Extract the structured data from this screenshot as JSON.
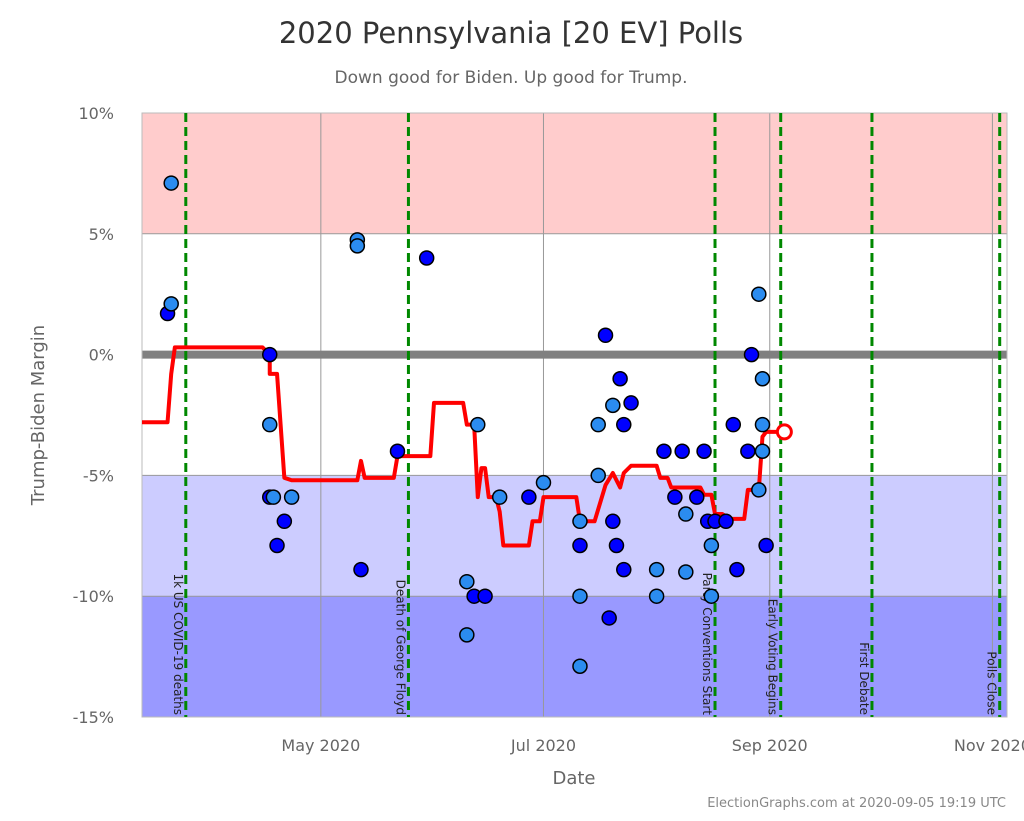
{
  "chart_data": {
    "type": "scatter",
    "title": "2020 Pennsylvania [20 EV] Polls",
    "subtitle": "Down good for Biden. Up good for Trump.",
    "xlabel": "Date",
    "ylabel": "Trump-Biden Margin",
    "xlim": [
      "2020-03-13",
      "2020-11-05"
    ],
    "ylim": [
      -15,
      10
    ],
    "x_ticks": [
      {
        "date": "2020-05-01",
        "label": "May 2020"
      },
      {
        "date": "2020-07-01",
        "label": "Jul 2020"
      },
      {
        "date": "2020-09-01",
        "label": "Sep 2020"
      },
      {
        "date": "2020-11-01",
        "label": "Nov 2020"
      }
    ],
    "y_ticks": [
      {
        "value": 10,
        "label": "10%"
      },
      {
        "value": 5,
        "label": "5%"
      },
      {
        "value": 0,
        "label": "0%"
      },
      {
        "value": -5,
        "label": "-5%"
      },
      {
        "value": -10,
        "label": "-10%"
      },
      {
        "value": -15,
        "label": "-15%"
      }
    ],
    "grid": true,
    "bands": [
      {
        "from": 5,
        "to": 10,
        "color": "#ffcccc"
      },
      {
        "from": -5,
        "to": 5,
        "color": "#ffffff"
      },
      {
        "from": -10,
        "to": -5,
        "color": "#ccccff"
      },
      {
        "from": -15,
        "to": -10,
        "color": "#9999ff"
      }
    ],
    "colors": {
      "poll_dark": "#0000ff",
      "poll_light": "#2b8cf0",
      "trend": "#ff0000",
      "event": "#008800",
      "zero": "#808080"
    },
    "events": [
      {
        "date": "2020-03-25",
        "label": "1k US COVID-19 deaths"
      },
      {
        "date": "2020-05-25",
        "label": "Death of George Floyd"
      },
      {
        "date": "2020-08-17",
        "label": "Party Conventions Start"
      },
      {
        "date": "2020-09-04",
        "label": "Early Voting Begins"
      },
      {
        "date": "2020-09-29",
        "label": "First Debate"
      },
      {
        "date": "2020-11-03",
        "label": "Polls Close"
      }
    ],
    "polls": [
      [
        "2020-03-20",
        1.7,
        "dark"
      ],
      [
        "2020-03-21",
        7.1,
        "light"
      ],
      [
        "2020-03-21",
        2.1,
        "light"
      ],
      [
        "2020-04-17",
        0.0,
        "dark"
      ],
      [
        "2020-04-17",
        -2.9,
        "light"
      ],
      [
        "2020-04-17",
        -5.9,
        "dark"
      ],
      [
        "2020-04-18",
        -5.9,
        "light"
      ],
      [
        "2020-04-19",
        -7.9,
        "dark"
      ],
      [
        "2020-04-21",
        -6.9,
        "dark"
      ],
      [
        "2020-04-23",
        -5.9,
        "light"
      ],
      [
        "2020-05-11",
        4.75,
        "light"
      ],
      [
        "2020-05-11",
        4.5,
        "light"
      ],
      [
        "2020-05-12",
        -8.9,
        "dark"
      ],
      [
        "2020-05-22",
        -4.0,
        "dark"
      ],
      [
        "2020-05-30",
        4.0,
        "dark"
      ],
      [
        "2020-06-10",
        -9.4,
        "light"
      ],
      [
        "2020-06-10",
        -11.6,
        "light"
      ],
      [
        "2020-06-12",
        -10.0,
        "dark"
      ],
      [
        "2020-06-13",
        -2.9,
        "light"
      ],
      [
        "2020-06-15",
        -10.0,
        "dark"
      ],
      [
        "2020-06-19",
        -5.9,
        "light"
      ],
      [
        "2020-06-27",
        -5.9,
        "dark"
      ],
      [
        "2020-07-01",
        -5.3,
        "light"
      ],
      [
        "2020-07-11",
        -6.9,
        "light"
      ],
      [
        "2020-07-11",
        -7.9,
        "dark"
      ],
      [
        "2020-07-11",
        -10.0,
        "light"
      ],
      [
        "2020-07-11",
        -12.9,
        "light"
      ],
      [
        "2020-07-16",
        -2.9,
        "light"
      ],
      [
        "2020-07-16",
        -5.0,
        "light"
      ],
      [
        "2020-07-18",
        0.8,
        "dark"
      ],
      [
        "2020-07-19",
        -10.9,
        "dark"
      ],
      [
        "2020-07-20",
        -2.1,
        "light"
      ],
      [
        "2020-07-20",
        -6.9,
        "dark"
      ],
      [
        "2020-07-21",
        -7.9,
        "dark"
      ],
      [
        "2020-07-22",
        -1.0,
        "dark"
      ],
      [
        "2020-07-23",
        -2.9,
        "dark"
      ],
      [
        "2020-07-23",
        -8.9,
        "dark"
      ],
      [
        "2020-07-25",
        -2.0,
        "dark"
      ],
      [
        "2020-08-01",
        -8.9,
        "light"
      ],
      [
        "2020-08-01",
        -10.0,
        "light"
      ],
      [
        "2020-08-03",
        -4.0,
        "dark"
      ],
      [
        "2020-08-06",
        -5.9,
        "dark"
      ],
      [
        "2020-08-08",
        -4.0,
        "dark"
      ],
      [
        "2020-08-09",
        -6.6,
        "light"
      ],
      [
        "2020-08-09",
        -9.0,
        "light"
      ],
      [
        "2020-08-12",
        -5.9,
        "dark"
      ],
      [
        "2020-08-14",
        -4.0,
        "dark"
      ],
      [
        "2020-08-15",
        -6.9,
        "dark"
      ],
      [
        "2020-08-16",
        -7.9,
        "light"
      ],
      [
        "2020-08-16",
        -10.0,
        "light"
      ],
      [
        "2020-08-17",
        -6.9,
        "dark"
      ],
      [
        "2020-08-20",
        -6.9,
        "dark"
      ],
      [
        "2020-08-22",
        -2.9,
        "dark"
      ],
      [
        "2020-08-23",
        -8.9,
        "dark"
      ],
      [
        "2020-08-26",
        -4.0,
        "dark"
      ],
      [
        "2020-08-27",
        0.0,
        "dark"
      ],
      [
        "2020-08-29",
        2.5,
        "light"
      ],
      [
        "2020-08-29",
        -5.6,
        "light"
      ],
      [
        "2020-08-30",
        -1.0,
        "light"
      ],
      [
        "2020-08-30",
        -2.9,
        "light"
      ],
      [
        "2020-08-30",
        -4.0,
        "light"
      ],
      [
        "2020-08-31",
        -7.9,
        "dark"
      ]
    ],
    "trend": [
      [
        "2020-03-13",
        -2.8
      ],
      [
        "2020-03-20",
        -2.8
      ],
      [
        "2020-03-21",
        -0.8
      ],
      [
        "2020-03-22",
        0.3
      ],
      [
        "2020-04-15",
        0.3
      ],
      [
        "2020-04-17",
        0.0
      ],
      [
        "2020-04-17",
        -0.8
      ],
      [
        "2020-04-19",
        -0.8
      ],
      [
        "2020-04-21",
        -5.1
      ],
      [
        "2020-04-23",
        -5.2
      ],
      [
        "2020-05-11",
        -5.2
      ],
      [
        "2020-05-12",
        -4.4
      ],
      [
        "2020-05-13",
        -5.1
      ],
      [
        "2020-05-21",
        -5.1
      ],
      [
        "2020-05-22",
        -4.2
      ],
      [
        "2020-05-31",
        -4.2
      ],
      [
        "2020-06-01",
        -2.0
      ],
      [
        "2020-06-09",
        -2.0
      ],
      [
        "2020-06-10",
        -2.9
      ],
      [
        "2020-06-12",
        -2.9
      ],
      [
        "2020-06-13",
        -5.9
      ],
      [
        "2020-06-14",
        -4.7
      ],
      [
        "2020-06-15",
        -4.7
      ],
      [
        "2020-06-16",
        -5.9
      ],
      [
        "2020-06-18",
        -5.9
      ],
      [
        "2020-06-19",
        -6.5
      ],
      [
        "2020-06-20",
        -7.9
      ],
      [
        "2020-06-27",
        -7.9
      ],
      [
        "2020-06-28",
        -6.9
      ],
      [
        "2020-06-30",
        -6.9
      ],
      [
        "2020-07-01",
        -5.9
      ],
      [
        "2020-07-10",
        -5.9
      ],
      [
        "2020-07-11",
        -6.9
      ],
      [
        "2020-07-15",
        -6.9
      ],
      [
        "2020-07-16",
        -6.4
      ],
      [
        "2020-07-18",
        -5.4
      ],
      [
        "2020-07-20",
        -4.9
      ],
      [
        "2020-07-22",
        -5.5
      ],
      [
        "2020-07-23",
        -4.9
      ],
      [
        "2020-07-25",
        -4.6
      ],
      [
        "2020-08-01",
        -4.6
      ],
      [
        "2020-08-02",
        -5.1
      ],
      [
        "2020-08-04",
        -5.1
      ],
      [
        "2020-08-05",
        -5.5
      ],
      [
        "2020-08-13",
        -5.5
      ],
      [
        "2020-08-14",
        -5.8
      ],
      [
        "2020-08-16",
        -5.8
      ],
      [
        "2020-08-17",
        -6.6
      ],
      [
        "2020-08-19",
        -6.6
      ],
      [
        "2020-08-21",
        -6.8
      ],
      [
        "2020-08-25",
        -6.8
      ],
      [
        "2020-08-26",
        -5.6
      ],
      [
        "2020-08-29",
        -5.6
      ],
      [
        "2020-08-30",
        -3.4
      ],
      [
        "2020-08-31",
        -3.2
      ],
      [
        "2020-09-05",
        -3.2
      ]
    ],
    "current": {
      "date": "2020-09-05",
      "value": -3.2
    },
    "footer": "ElectionGraphs.com at 2020-09-05 19:19 UTC"
  }
}
